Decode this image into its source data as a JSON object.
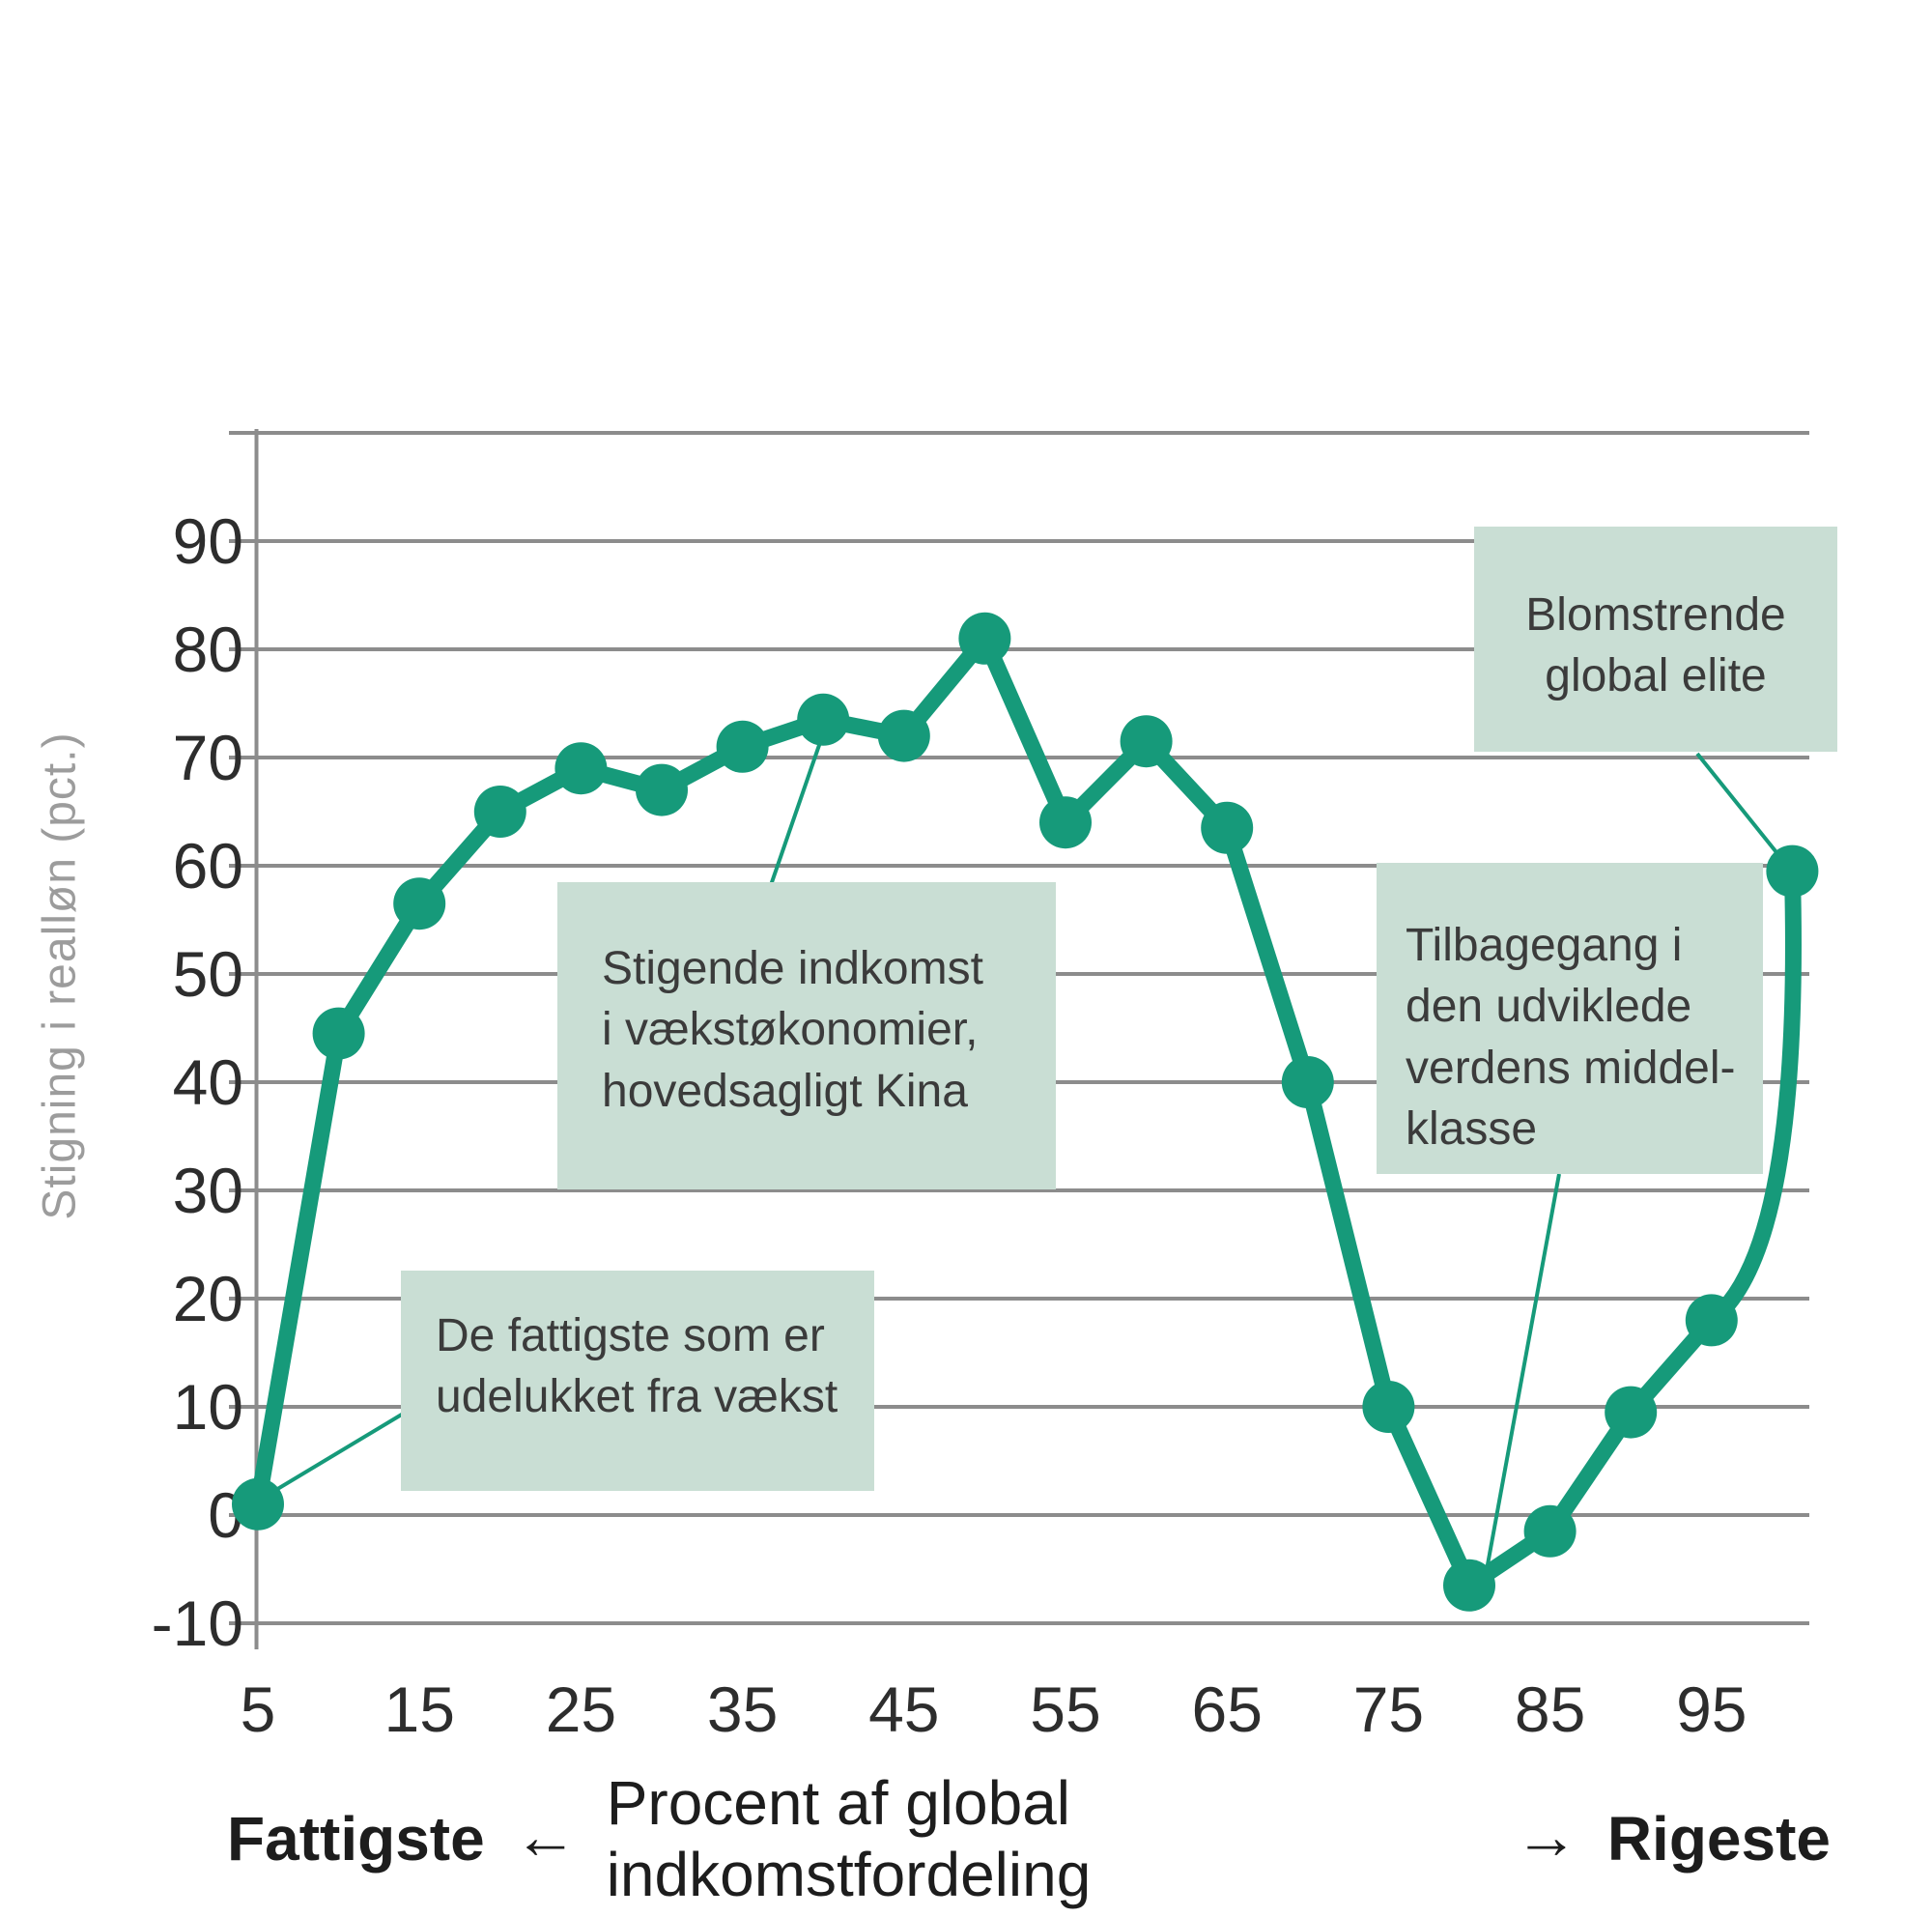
{
  "colors": {
    "line": "#169a7a",
    "annotation_box": "#c9ded4",
    "gridline": "#8c8c8c",
    "tick_text": "#2d2d2d",
    "annotation_text": "#3b3b3b",
    "y_axis_title_text": "#9c9c9c",
    "x_axis_title_text": "#1d1d1d"
  },
  "y_axis": {
    "title": "Stigning i realløn (pct.)",
    "tick_labels": [
      90,
      80,
      70,
      60,
      50,
      40,
      30,
      20,
      10,
      0,
      -10
    ]
  },
  "x_axis": {
    "tick_labels": [
      5,
      15,
      25,
      35,
      45,
      55,
      65,
      75,
      85,
      95
    ],
    "title_left": "Fattigste",
    "arrow_left": "←",
    "title_center": "Procent af global indkomstfordeling",
    "arrow_right": "→",
    "title_right": "Rigeste"
  },
  "annotations": {
    "poorest": {
      "text": "De fattigste som er\nudelukket fra vækst",
      "target_percentile": 5
    },
    "emerging": {
      "text": "Stigende indkomst\ni vækstøkonomier,\nhovedsagligt Kina",
      "target_percentile": 40
    },
    "middle_class": {
      "text": "Tilbagegang i\nden udviklede\nverdens middel-\nklasse",
      "target_percentile": 80
    },
    "elite": {
      "text": "Blomstrende\nglobal elite",
      "target_percentile": 100
    }
  },
  "chart_data": {
    "type": "line",
    "x": [
      5,
      10,
      15,
      20,
      25,
      30,
      35,
      40,
      45,
      50,
      55,
      60,
      65,
      70,
      75,
      80,
      85,
      90,
      95,
      100
    ],
    "values": [
      1,
      44.5,
      56.5,
      65,
      69,
      67,
      71,
      73.5,
      72,
      81,
      64,
      71.5,
      63.5,
      40,
      10,
      -6.5,
      -1.5,
      9.5,
      18,
      59.5
    ],
    "xlabel": "Fattigste ← Procent af global indkomstfordeling → Rigeste",
    "ylabel": "Stigning i realløn (pct.)",
    "ylim": [
      -15,
      100
    ],
    "xlim": [
      5,
      101
    ],
    "y_gridlines": [
      -10,
      0,
      10,
      20,
      30,
      40,
      50,
      60,
      70,
      80,
      90,
      100
    ],
    "grid": true,
    "legend": false
  }
}
